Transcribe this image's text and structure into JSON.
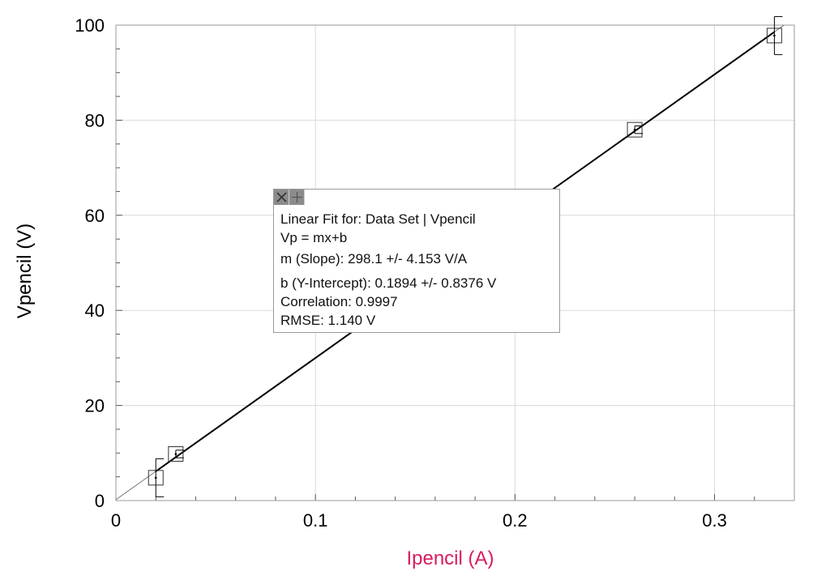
{
  "chart_data": {
    "type": "scatter",
    "xlabel": "Ipencil (A)",
    "ylabel": "Vpencil (V)",
    "xlim": [
      0,
      0.34
    ],
    "ylim": [
      0,
      100
    ],
    "x_ticks": [
      0,
      0.1,
      0.2,
      0.3
    ],
    "x_tick_labels": [
      "0",
      "0.1",
      "0.2",
      "0.3"
    ],
    "y_ticks": [
      0,
      20,
      40,
      60,
      80,
      100
    ],
    "y_tick_labels": [
      "0",
      "20",
      "40",
      "60",
      "80",
      "100"
    ],
    "grid": true,
    "series": [
      {
        "points": [
          {
            "x": 0.02,
            "y": 4.8,
            "yerr": 4.0
          },
          {
            "x": 0.03,
            "y": 9.8,
            "yerr": 0.8
          },
          {
            "x": 0.26,
            "y": 78.0,
            "yerr": 0.8
          },
          {
            "x": 0.33,
            "y": 97.8,
            "yerr": 4.0
          }
        ]
      }
    ],
    "fit": {
      "slope": 298.1,
      "intercept": 0.1894,
      "x_range": [
        0.02,
        0.33
      ]
    }
  },
  "colors": {
    "xlabel": "#d81b60",
    "ylabel": "#000000",
    "grid": "#d9d9d9",
    "axis": "#555555",
    "fit_line": "#000000"
  },
  "fit_box": {
    "close_icon": "close-icon",
    "options_icon": "options-icon",
    "line1": "Linear Fit for: Data Set | Vpencil",
    "line2": "Vp = mx+b",
    "line3": "m (Slope): 298.1 +/- 4.153 V/A",
    "line4": "b (Y-Intercept): 0.1894 +/- 0.8376 V",
    "line5": "Correlation: 0.9997",
    "line6": "RMSE: 1.140 V"
  }
}
